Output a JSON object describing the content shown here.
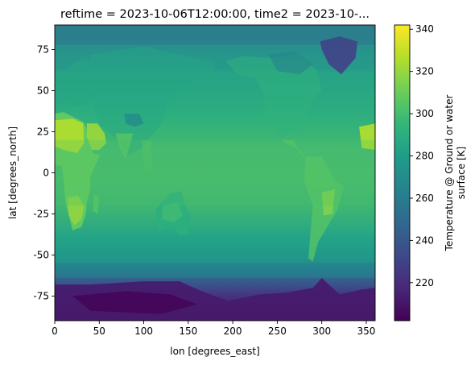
{
  "chart_data": {
    "type": "heatmap",
    "title": "reftime = 2023-10-06T12:00:00, time2 = 2023-10-...",
    "xlabel": "lon [degrees_east]",
    "ylabel": "lat [degrees_north]",
    "xlim": [
      0,
      360
    ],
    "ylim": [
      -90,
      90
    ],
    "x_ticks": [
      0,
      50,
      100,
      150,
      200,
      250,
      300,
      350
    ],
    "y_ticks": [
      -75,
      -50,
      -25,
      0,
      25,
      50,
      75
    ],
    "colorbar": {
      "label_line1": "Temperature @ Ground or water",
      "label_line2": "surface [K]",
      "range": [
        202,
        342
      ],
      "ticks": [
        220,
        240,
        260,
        280,
        300,
        320,
        340
      ],
      "colormap": "viridis"
    },
    "colormap_stops": [
      "#440154",
      "#482878",
      "#3e4989",
      "#31688e",
      "#26828e",
      "#1f9e89",
      "#35b779",
      "#6ece58",
      "#b5de2b",
      "#fde725"
    ],
    "field_description_K": {
      "antarctica": 212,
      "southern_ocean": 268,
      "tropics_ocean": 301,
      "midlat_ocean": 288,
      "arctic": 255,
      "greenland": 232,
      "sahara": 325,
      "southern_africa": 318,
      "australia": 290,
      "andes_brazil": 305,
      "north_america": 292,
      "eurasia": 285,
      "tibet": 270
    }
  }
}
